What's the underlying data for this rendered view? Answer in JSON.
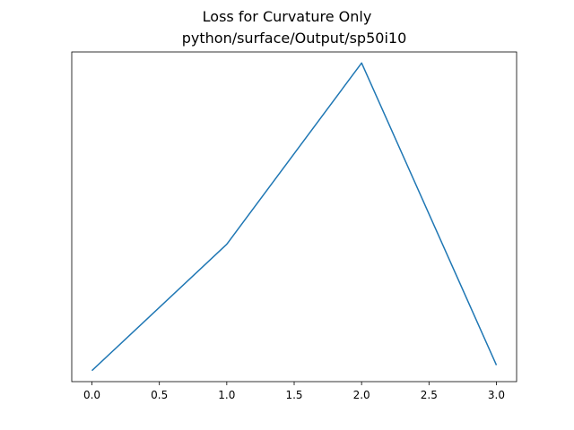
{
  "chart_data": {
    "type": "line",
    "title": "Loss for Curvature Only",
    "subtitle": "python/surface/Output/sp50i10",
    "x": [
      0,
      1,
      2,
      3
    ],
    "series": [
      {
        "values": [
          0.3,
          2.6,
          5.9,
          0.4
        ],
        "color": "#1f77b4"
      }
    ],
    "xlim": [
      -0.15,
      3.15
    ],
    "ylim": [
      0.1,
      6.1
    ],
    "xticks": [
      0.0,
      0.5,
      1.0,
      1.5,
      2.0,
      2.5,
      3.0
    ],
    "xtick_labels": [
      "0.0",
      "0.5",
      "1.0",
      "1.5",
      "2.0",
      "2.5",
      "3.0"
    ],
    "yticks_visible": false,
    "grid": false
  }
}
